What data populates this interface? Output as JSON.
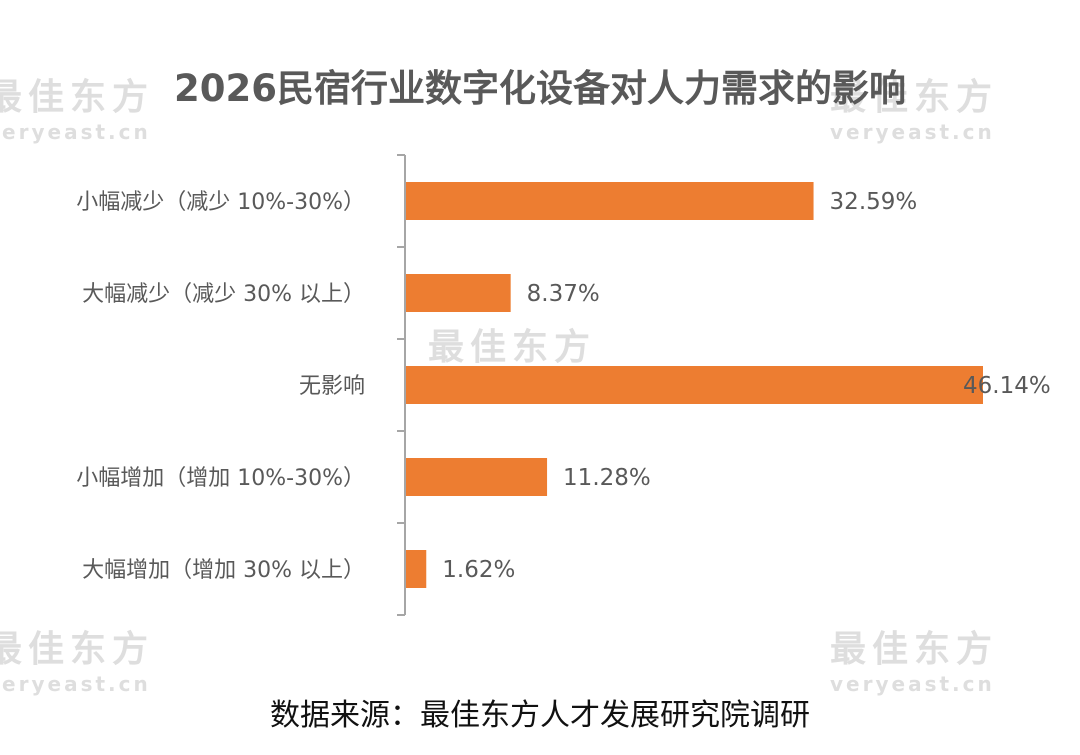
{
  "chart_data": {
    "type": "bar",
    "orientation": "horizontal",
    "title": "2026民宿行业数字化设备对人力需求的影响",
    "categories": [
      "小幅减少（减少 10%-30%）",
      "大幅减少（减少 30% 以上）",
      "无影响",
      "小幅增加（增加 10%-30%）",
      "大幅增加（增加 30% 以上）"
    ],
    "values": [
      32.59,
      8.37,
      46.14,
      11.28,
      1.62
    ],
    "value_labels": [
      "32.59%",
      "8.37%",
      "46.14%",
      "11.28%",
      "1.62%"
    ],
    "xlim": [
      0,
      46.14
    ],
    "grid": false,
    "legend": "none",
    "bar_color": "#ed7d31",
    "axis_color": "#a6a6a6"
  },
  "source": "数据来源：最佳东方人才发展研究院调研",
  "watermarks": {
    "cn": "最佳东方",
    "en": "veryeast.cn"
  }
}
